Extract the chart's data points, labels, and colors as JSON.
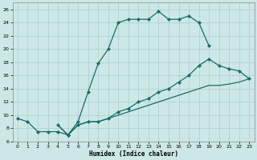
{
  "xlabel": "Humidex (Indice chaleur)",
  "background_color": "#cce8e6",
  "grid_color": "#aaccca",
  "line_color": "#1a6b6b",
  "xlim": [
    -0.5,
    23.5
  ],
  "ylim": [
    6,
    27
  ],
  "xticks": [
    0,
    1,
    2,
    3,
    4,
    5,
    6,
    7,
    8,
    9,
    10,
    11,
    12,
    13,
    14,
    15,
    16,
    17,
    18,
    19,
    20,
    21,
    22,
    23
  ],
  "yticks": [
    6,
    8,
    10,
    12,
    14,
    16,
    18,
    20,
    22,
    24,
    26
  ],
  "curve_arch_x": [
    0,
    1,
    2,
    3,
    4,
    5,
    6,
    7,
    8,
    9,
    10,
    11,
    12,
    13,
    14,
    15,
    16,
    17,
    18,
    19
  ],
  "curve_arch_y": [
    9.5,
    9.0,
    7.5,
    7.5,
    7.5,
    7.0,
    9.0,
    13.5,
    17.8,
    20.0,
    24.0,
    24.5,
    24.5,
    24.5,
    25.7,
    24.5,
    24.5,
    25.0,
    24.0,
    20.5
  ],
  "curve_diag1_x": [
    4,
    5,
    6,
    7,
    8,
    9,
    10,
    11,
    12,
    13,
    14,
    15,
    16,
    17,
    18,
    19,
    20,
    21,
    22,
    23
  ],
  "curve_diag1_y": [
    8.5,
    7.0,
    8.5,
    9.0,
    9.0,
    9.5,
    10.5,
    11.0,
    12.0,
    12.5,
    13.5,
    14.0,
    15.0,
    16.0,
    17.5,
    18.5,
    17.5,
    17.0,
    16.7,
    15.5
  ],
  "curve_diag2_x": [
    4,
    5,
    6,
    7,
    8,
    9,
    10,
    11,
    12,
    13,
    14,
    15,
    16,
    17,
    18,
    19,
    20,
    21,
    22,
    23
  ],
  "curve_diag2_y": [
    8.5,
    7.0,
    8.5,
    9.0,
    9.0,
    9.5,
    10.0,
    10.5,
    11.0,
    11.5,
    12.0,
    12.5,
    13.0,
    13.5,
    14.0,
    14.5,
    14.5,
    14.7,
    15.0,
    15.5
  ]
}
